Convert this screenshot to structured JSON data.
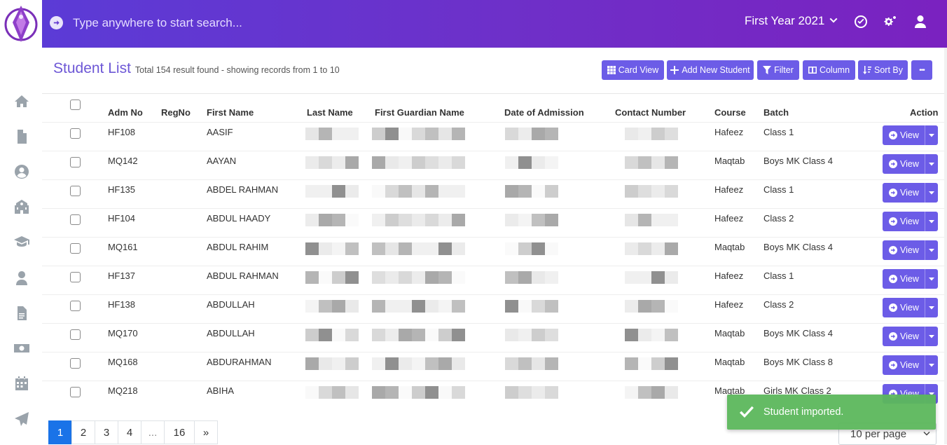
{
  "search": {
    "placeholder": "Type anywhere to start search..."
  },
  "header": {
    "year_label": "First Year 2021"
  },
  "page": {
    "title": "Student List",
    "subtitle": "Total 154 result found - showing records from 1 to 10"
  },
  "toolbar": {
    "card_view": "Card View",
    "add_student": "Add New Student",
    "filter": "Filter",
    "column": "Column",
    "sort_by": "Sort By",
    "more": "•••"
  },
  "columns": {
    "adm_no": "Adm No",
    "reg_no": "RegNo",
    "first_name": "First Name",
    "last_name": "Last Name",
    "guardian": "First Guardian Name",
    "admission_date": "Date of Admission",
    "contact": "Contact Number",
    "course": "Course",
    "batch": "Batch",
    "action": "Action"
  },
  "rows": [
    {
      "adm_no": "HF108",
      "first_name": "AASIF",
      "course": "Hafeez",
      "batch": "Class 1",
      "view": "View"
    },
    {
      "adm_no": "MQ142",
      "first_name": "AAYAN",
      "course": "Maqtab",
      "batch": "Boys MK Class 4",
      "view": "View"
    },
    {
      "adm_no": "HF135",
      "first_name": "ABDEL RAHMAN",
      "course": "Hafeez",
      "batch": "Class 1",
      "view": "View"
    },
    {
      "adm_no": "HF104",
      "first_name": "ABDUL HAADY",
      "course": "Hafeez",
      "batch": "Class 2",
      "view": "View"
    },
    {
      "adm_no": "MQ161",
      "first_name": "ABDUL RAHIM",
      "course": "Maqtab",
      "batch": "Boys MK Class 4",
      "view": "View"
    },
    {
      "adm_no": "HF137",
      "first_name": "ABDUL RAHMAN",
      "course": "Hafeez",
      "batch": "Class 1",
      "view": "View"
    },
    {
      "adm_no": "HF138",
      "first_name": "ABDULLAH",
      "course": "Hafeez",
      "batch": "Class 2",
      "view": "View"
    },
    {
      "adm_no": "MQ170",
      "first_name": "ABDULLAH",
      "course": "Maqtab",
      "batch": "Boys MK Class 4",
      "view": "View"
    },
    {
      "adm_no": "MQ168",
      "first_name": "ABDURAHMAN",
      "course": "Maqtab",
      "batch": "Boys MK Class 8",
      "view": "View"
    },
    {
      "adm_no": "MQ218",
      "first_name": "ABIHA",
      "course": "Maqtab",
      "batch": "Girls MK Class 2",
      "view": "View"
    }
  ],
  "pagination": {
    "pages": [
      "1",
      "2",
      "3",
      "4",
      "...",
      "16",
      "»"
    ],
    "active": "1"
  },
  "per_page": "10 per page",
  "toast": {
    "message": "Student imported."
  },
  "colors": {
    "accent": "#6c5ce7",
    "header_start": "#5b3bd6",
    "header_end": "#7a22c0",
    "toast": "#5cb85c",
    "active_page": "#1a73e8"
  }
}
